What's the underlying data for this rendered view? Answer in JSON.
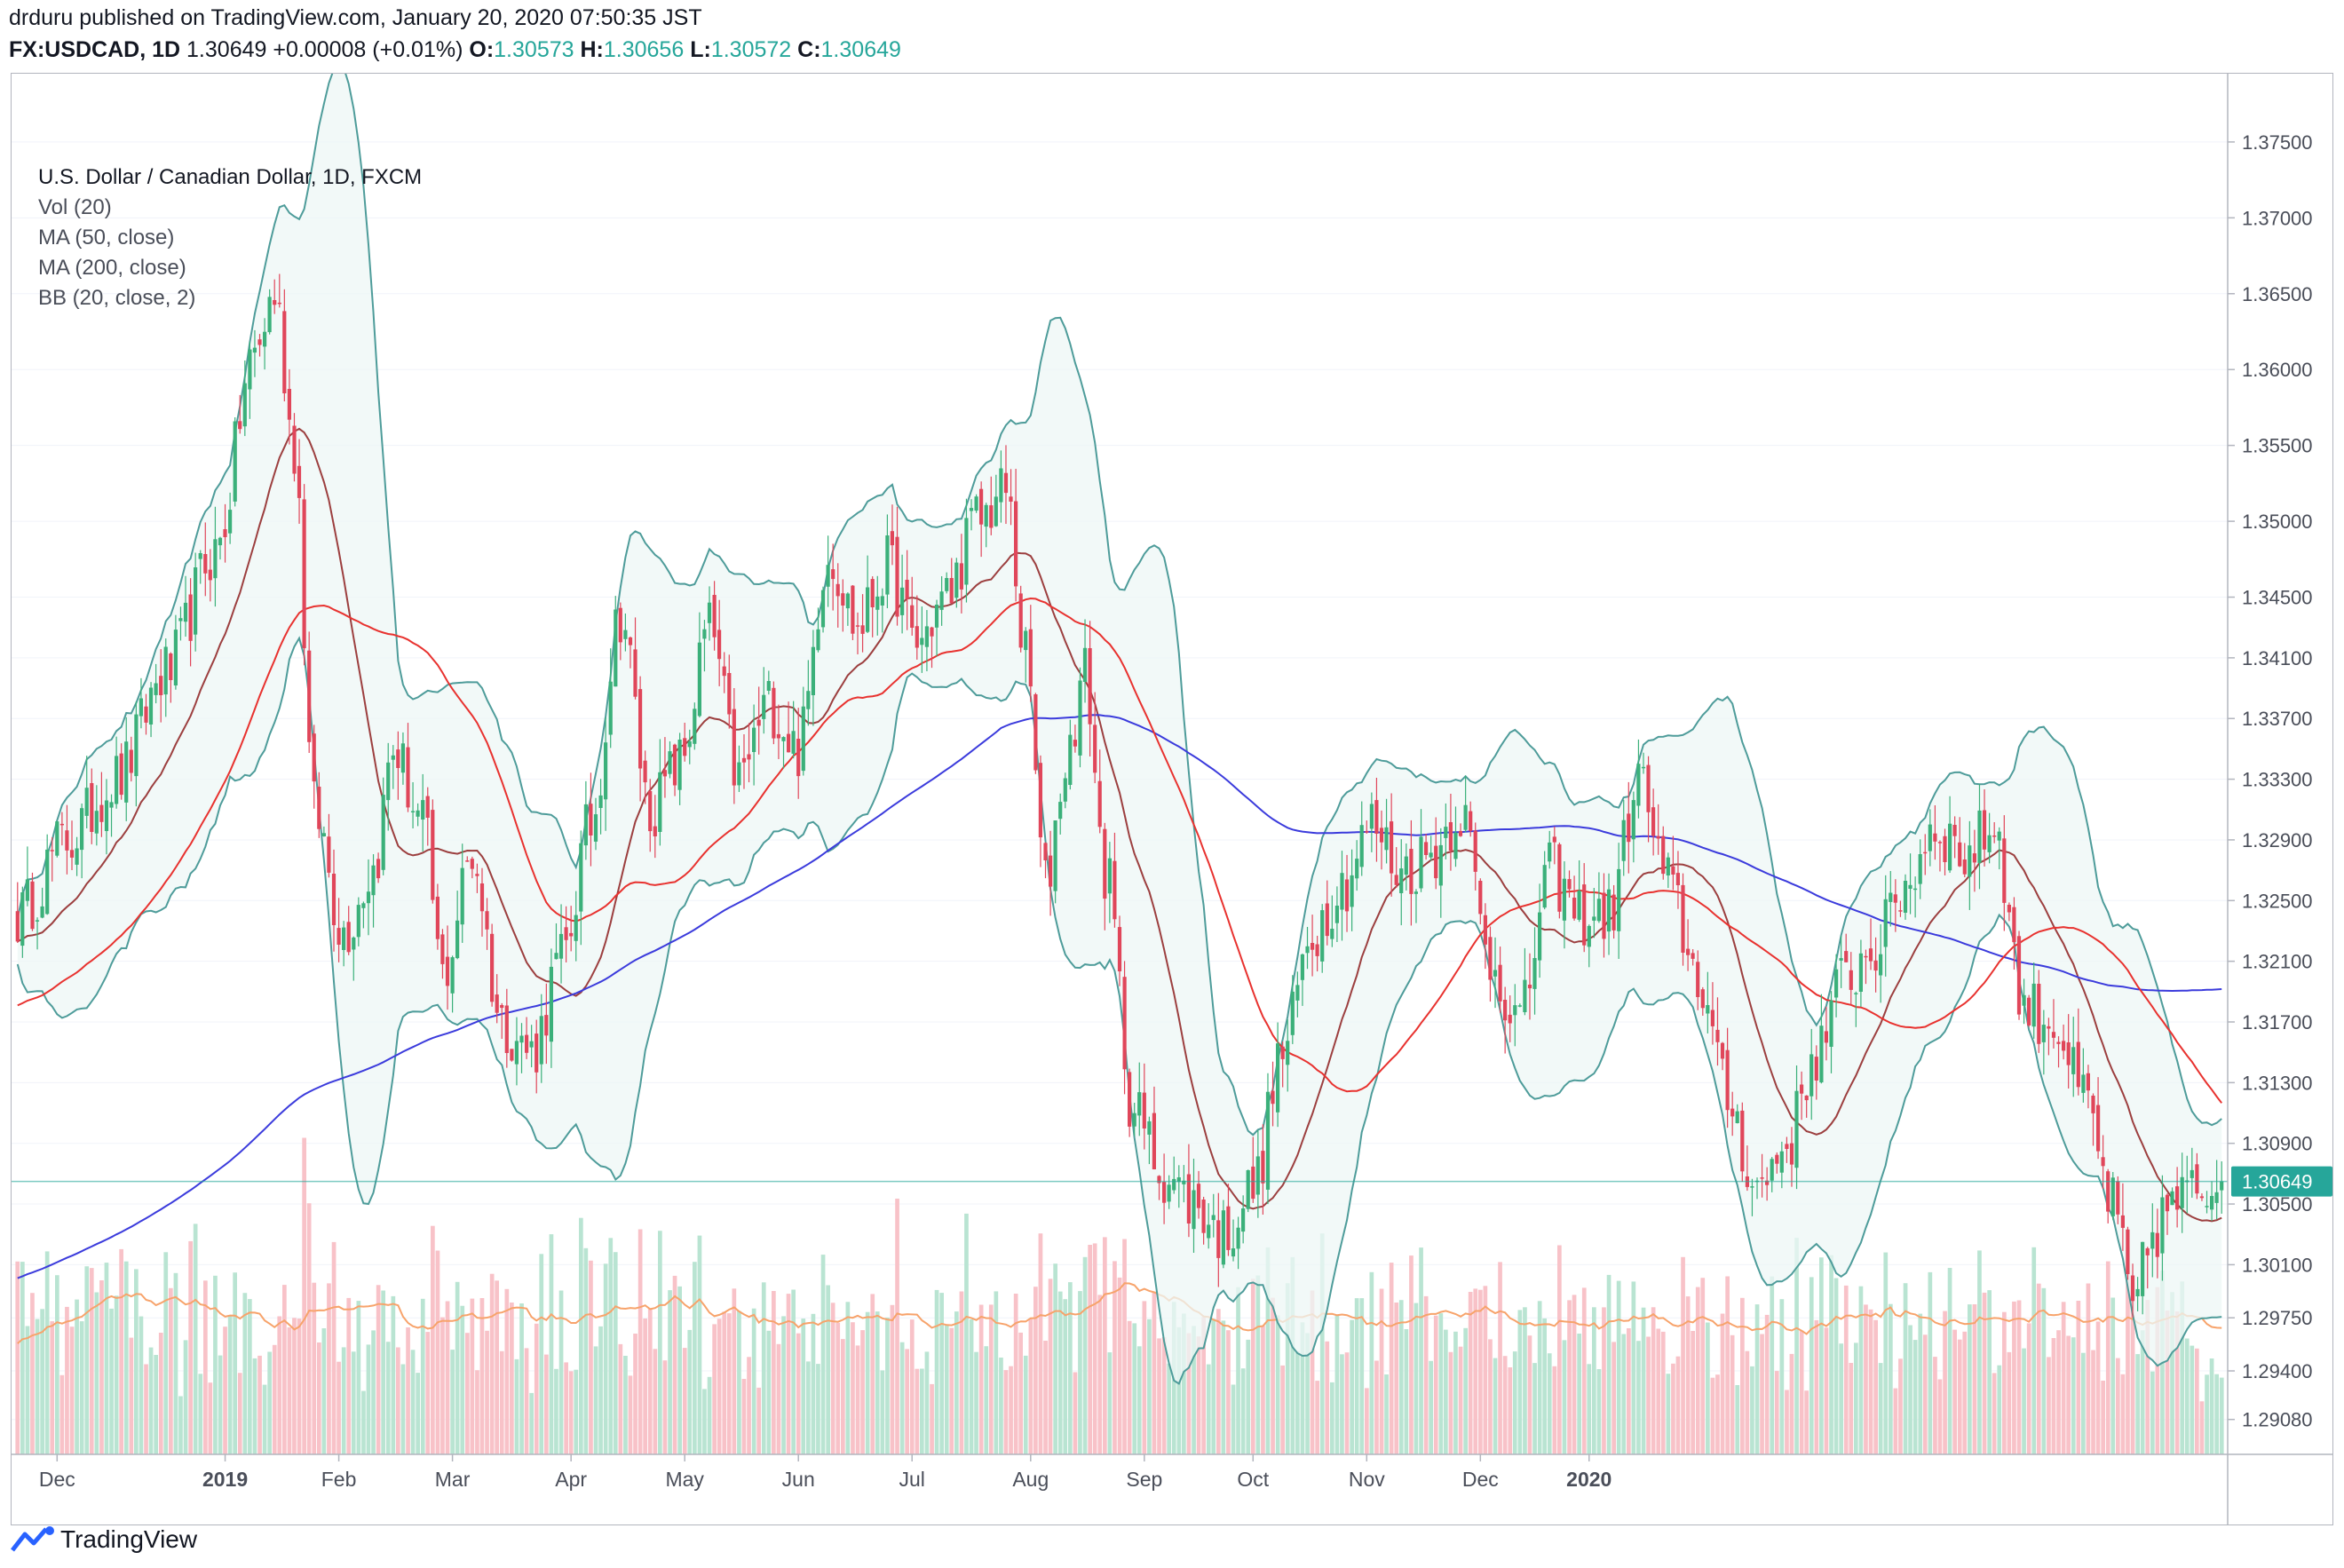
{
  "header": {
    "publisher": "drduru published on TradingView.com, January 20, 2020 07:50:35 JST",
    "symbol": "FX:USDCAD, 1D",
    "last": "1.30649",
    "change": "+0.00008 (+0.01%)",
    "o_label": "O:",
    "o_value": "1.30573",
    "h_label": "H:",
    "h_value": "1.30656",
    "l_label": "L:",
    "l_value": "1.30572",
    "c_label": "C:",
    "c_value": "1.30649"
  },
  "legend": {
    "title": "U.S. Dollar / Canadian Dollar, 1D, FXCM",
    "vol": "Vol (20)",
    "ma50": "MA (50, close)",
    "ma200": "MA (200, close)",
    "bb": "BB (20, close, 2)"
  },
  "footer": {
    "brand": "TradingView",
    "logo_icon": "tradingview-logo-icon"
  },
  "colors": {
    "up": "#26a69a",
    "down": "#ef5350",
    "up_candle": "#3bb07a",
    "down_candle": "#e0465a",
    "vol_up": "#b9e4d2",
    "vol_down": "#f8c2c8",
    "ma50": "#e8322f",
    "ma200": "#3b3bdc",
    "bb_band": "#4e9c9a",
    "bb_fill": "#eef7f6",
    "bb_basis": "#9c3f3f",
    "vol_ma": "#f7a36b",
    "last_badge": "#26a69a"
  },
  "chart_data": {
    "type": "candlestick",
    "symbol": "U.S. Dollar / Canadian Dollar",
    "ylim": [
      1.2885,
      1.3795
    ],
    "y_ticks": [
      "1.37500",
      "1.37000",
      "1.36500",
      "1.36000",
      "1.35500",
      "1.35000",
      "1.34500",
      "1.34100",
      "1.33700",
      "1.33300",
      "1.32900",
      "1.32500",
      "1.32100",
      "1.31700",
      "1.31300",
      "1.30900",
      "1.30500",
      "1.30100",
      "1.29750",
      "1.29400",
      "1.29080"
    ],
    "x_ticks": [
      "Dec",
      "2019",
      "Feb",
      "Mar",
      "Apr",
      "May",
      "Jun",
      "Jul",
      "Aug",
      "Sep",
      "Oct",
      "Nov",
      "Dec",
      "2020"
    ],
    "last_price": "1.30649",
    "close_anchors": [
      [
        0,
        1.324
      ],
      [
        10,
        1.329
      ],
      [
        20,
        1.333
      ],
      [
        30,
        1.34
      ],
      [
        40,
        1.348
      ],
      [
        48,
        1.361
      ],
      [
        52,
        1.365
      ],
      [
        56,
        1.355
      ],
      [
        60,
        1.331
      ],
      [
        66,
        1.323
      ],
      [
        72,
        1.327
      ],
      [
        76,
        1.335
      ],
      [
        82,
        1.33
      ],
      [
        86,
        1.32
      ],
      [
        92,
        1.328
      ],
      [
        98,
        1.317
      ],
      [
        104,
        1.315
      ],
      [
        110,
        1.321
      ],
      [
        116,
        1.33
      ],
      [
        122,
        1.344
      ],
      [
        128,
        1.331
      ],
      [
        134,
        1.334
      ],
      [
        140,
        1.343
      ],
      [
        146,
        1.333
      ],
      [
        152,
        1.338
      ],
      [
        158,
        1.335
      ],
      [
        164,
        1.348
      ],
      [
        170,
        1.343
      ],
      [
        176,
        1.347
      ],
      [
        182,
        1.342
      ],
      [
        188,
        1.345
      ],
      [
        194,
        1.35
      ],
      [
        200,
        1.352
      ],
      [
        204,
        1.341
      ],
      [
        208,
        1.326
      ],
      [
        212,
        1.334
      ],
      [
        216,
        1.34
      ],
      [
        220,
        1.327
      ],
      [
        226,
        1.311
      ],
      [
        232,
        1.307
      ],
      [
        238,
        1.305
      ],
      [
        244,
        1.303
      ],
      [
        250,
        1.306
      ],
      [
        256,
        1.315
      ],
      [
        262,
        1.323
      ],
      [
        268,
        1.326
      ],
      [
        274,
        1.33
      ],
      [
        280,
        1.327
      ],
      [
        286,
        1.328
      ],
      [
        292,
        1.331
      ],
      [
        298,
        1.321
      ],
      [
        304,
        1.317
      ],
      [
        310,
        1.327
      ],
      [
        316,
        1.324
      ],
      [
        322,
        1.324
      ],
      [
        328,
        1.333
      ],
      [
        334,
        1.326
      ],
      [
        340,
        1.32
      ],
      [
        346,
        1.312
      ],
      [
        352,
        1.306
      ],
      [
        358,
        1.309
      ],
      [
        364,
        1.315
      ],
      [
        370,
        1.32
      ],
      [
        376,
        1.322
      ],
      [
        382,
        1.326
      ],
      [
        388,
        1.33
      ],
      [
        394,
        1.328
      ],
      [
        400,
        1.33
      ],
      [
        406,
        1.318
      ],
      [
        412,
        1.317
      ],
      [
        418,
        1.312
      ],
      [
        424,
        1.305
      ],
      [
        428,
        1.298
      ],
      [
        432,
        1.303
      ],
      [
        436,
        1.305
      ],
      [
        442,
        1.306
      ],
      [
        446,
        1.30649
      ]
    ],
    "annotations": [
      "Vol (20)",
      "MA (50, close)",
      "MA (200, close)",
      "BB (20, close, 2)"
    ]
  }
}
